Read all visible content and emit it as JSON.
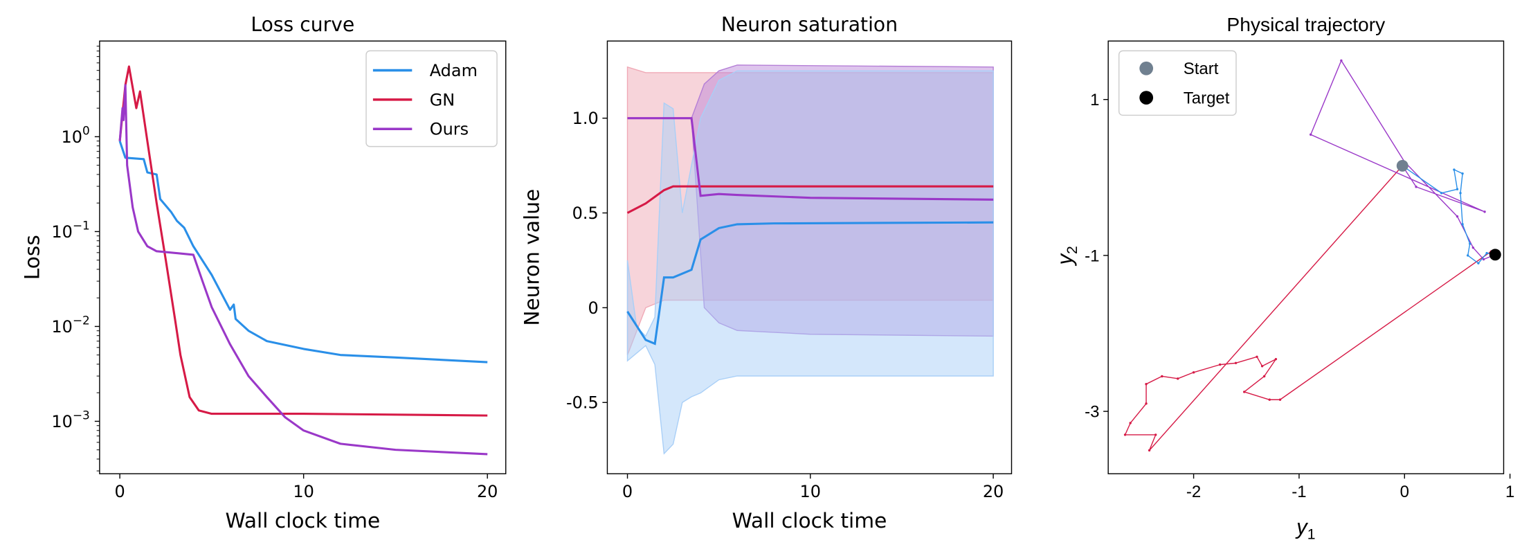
{
  "colors": {
    "Adam": "#2a8fe8",
    "GN": "#d61a46",
    "Ours": "#9a38c8",
    "start": "#708090",
    "target": "#000000"
  },
  "chart_data": [
    {
      "type": "line",
      "title": "Loss curve",
      "xlabel": "Wall clock time",
      "ylabel": "Loss",
      "yscale": "log",
      "xlim": [
        -1.1,
        21
      ],
      "ylim": [
        0.00028,
        10.2
      ],
      "xticks": [
        0,
        10,
        20
      ],
      "yticks": [
        1,
        0.1,
        0.01,
        0.001
      ],
      "ytick_labels": [
        [
          "10",
          "0"
        ],
        [
          "10",
          "−1"
        ],
        [
          "10",
          "−2"
        ],
        [
          "10",
          "−3"
        ]
      ],
      "legend": "top-right",
      "series": [
        {
          "name": "Adam",
          "points": [
            [
              0,
              0.9
            ],
            [
              0.3,
              0.6
            ],
            [
              1.3,
              0.58
            ],
            [
              1.5,
              0.42
            ],
            [
              2,
              0.4
            ],
            [
              2.2,
              0.22
            ],
            [
              2.8,
              0.16
            ],
            [
              3.1,
              0.13
            ],
            [
              3.5,
              0.11
            ],
            [
              4,
              0.07
            ],
            [
              5,
              0.035
            ],
            [
              6,
              0.015
            ],
            [
              6.2,
              0.017
            ],
            [
              6.3,
              0.012
            ],
            [
              7,
              0.009
            ],
            [
              8,
              0.007
            ],
            [
              10,
              0.0058
            ],
            [
              12,
              0.005
            ],
            [
              15,
              0.0047
            ],
            [
              20,
              0.0042
            ]
          ]
        },
        {
          "name": "GN",
          "points": [
            [
              0,
              0.9
            ],
            [
              0.3,
              3.5
            ],
            [
              0.5,
              5.5
            ],
            [
              0.9,
              2
            ],
            [
              1.1,
              3
            ],
            [
              1.5,
              0.9
            ],
            [
              2,
              0.2
            ],
            [
              2.5,
              0.05
            ],
            [
              3,
              0.012
            ],
            [
              3.3,
              0.005
            ],
            [
              3.8,
              0.0018
            ],
            [
              4.3,
              0.0013
            ],
            [
              5,
              0.0012
            ],
            [
              10,
              0.0012
            ],
            [
              20,
              0.00115
            ]
          ]
        },
        {
          "name": "Ours",
          "points": [
            [
              0,
              0.9
            ],
            [
              0.15,
              2
            ],
            [
              0.2,
              1.5
            ],
            [
              0.3,
              3.5
            ],
            [
              0.4,
              0.5
            ],
            [
              0.7,
              0.18
            ],
            [
              1,
              0.1
            ],
            [
              1.5,
              0.07
            ],
            [
              2,
              0.062
            ],
            [
              4,
              0.057
            ],
            [
              4.5,
              0.03
            ],
            [
              5,
              0.016
            ],
            [
              6,
              0.0065
            ],
            [
              7,
              0.003
            ],
            [
              8,
              0.0018
            ],
            [
              9,
              0.0011
            ],
            [
              10,
              0.0008
            ],
            [
              12,
              0.00058
            ],
            [
              15,
              0.0005
            ],
            [
              20,
              0.00045
            ]
          ]
        }
      ]
    },
    {
      "type": "area",
      "title": "Neuron saturation",
      "xlabel": "Wall clock time",
      "ylabel": "Neuron value",
      "xlim": [
        -1.1,
        21
      ],
      "ylim": [
        -0.876,
        1.407
      ],
      "xticks": [
        0,
        10,
        20
      ],
      "yticks": [
        1.0,
        0.5,
        0,
        -0.5
      ],
      "ytick_labels": [
        "1.0",
        "0.5",
        "0",
        "-0.5"
      ],
      "series": [
        {
          "name": "GN",
          "mean": [
            [
              0,
              0.5
            ],
            [
              1,
              0.55
            ],
            [
              2,
              0.62
            ],
            [
              2.5,
              0.64
            ],
            [
              20,
              0.64
            ]
          ],
          "upper": [
            [
              0,
              1.27
            ],
            [
              1,
              1.24
            ],
            [
              20,
              1.24
            ]
          ],
          "lower": [
            [
              0,
              -0.25
            ],
            [
              1,
              0.0
            ],
            [
              2,
              0.04
            ],
            [
              2.5,
              0.04
            ],
            [
              20,
              0.04
            ]
          ]
        },
        {
          "name": "Ours",
          "mean": [
            [
              0,
              1.0
            ],
            [
              3.5,
              1.0
            ],
            [
              4,
              0.59
            ],
            [
              5,
              0.6
            ],
            [
              6,
              0.595
            ],
            [
              10,
              0.58
            ],
            [
              20,
              0.57
            ]
          ],
          "upper": [
            [
              0,
              1.0
            ],
            [
              3.5,
              1.0
            ],
            [
              4.2,
              1.18
            ],
            [
              5,
              1.25
            ],
            [
              6,
              1.28
            ],
            [
              20,
              1.27
            ]
          ],
          "lower": [
            [
              0,
              1.0
            ],
            [
              3.5,
              1.0
            ],
            [
              4.2,
              0.0
            ],
            [
              5,
              -0.08
            ],
            [
              6,
              -0.12
            ],
            [
              10,
              -0.14
            ],
            [
              20,
              -0.15
            ]
          ]
        },
        {
          "name": "Adam",
          "mean": [
            [
              0,
              -0.02
            ],
            [
              1,
              -0.17
            ],
            [
              1.5,
              -0.19
            ],
            [
              2,
              0.16
            ],
            [
              2.5,
              0.16
            ],
            [
              3,
              0.18
            ],
            [
              3.5,
              0.2
            ],
            [
              4,
              0.36
            ],
            [
              5,
              0.42
            ],
            [
              6,
              0.44
            ],
            [
              8,
              0.445
            ],
            [
              20,
              0.45
            ]
          ],
          "upper": [
            [
              0,
              0.25
            ],
            [
              0.5,
              -0.1
            ],
            [
              1,
              -0.15
            ],
            [
              1.5,
              -0.05
            ],
            [
              2,
              1.08
            ],
            [
              2.5,
              1.05
            ],
            [
              3,
              0.5
            ],
            [
              4,
              1.0
            ],
            [
              5,
              1.2
            ],
            [
              6,
              1.25
            ],
            [
              20,
              1.25
            ]
          ],
          "lower": [
            [
              0,
              -0.28
            ],
            [
              1,
              -0.2
            ],
            [
              1.5,
              -0.3
            ],
            [
              2,
              -0.77
            ],
            [
              2.5,
              -0.72
            ],
            [
              3,
              -0.5
            ],
            [
              3.5,
              -0.47
            ],
            [
              4,
              -0.45
            ],
            [
              5,
              -0.38
            ],
            [
              6,
              -0.36
            ],
            [
              20,
              -0.36
            ]
          ]
        }
      ]
    },
    {
      "type": "line",
      "title": "Physical trajectory",
      "xlabel": "y1",
      "ylabel": "y2",
      "xlim": [
        -2.81,
        0.94
      ],
      "ylim": [
        -3.8,
        1.75
      ],
      "xticks": [
        -2,
        -1,
        0,
        1
      ],
      "yticks": [
        1,
        -1,
        -3
      ],
      "legend": "top-left",
      "markers": [
        {
          "name": "Start",
          "point": [
            -0.02,
            0.15
          ]
        },
        {
          "name": "Target",
          "point": [
            0.86,
            -0.99
          ]
        }
      ],
      "series": [
        {
          "name": "GN",
          "points": [
            [
              -0.02,
              0.15
            ],
            [
              -2.42,
              -3.5
            ],
            [
              -2.36,
              -3.3
            ],
            [
              -2.65,
              -3.3
            ],
            [
              -2.6,
              -3.15
            ],
            [
              -2.45,
              -2.9
            ],
            [
              -2.45,
              -2.65
            ],
            [
              -2.3,
              -2.55
            ],
            [
              -2.15,
              -2.58
            ],
            [
              -2,
              -2.5
            ],
            [
              -1.75,
              -2.4
            ],
            [
              -1.6,
              -2.38
            ],
            [
              -1.4,
              -2.3
            ],
            [
              -1.35,
              -2.42
            ],
            [
              -1.22,
              -2.33
            ],
            [
              -1.33,
              -2.55
            ],
            [
              -1.52,
              -2.75
            ],
            [
              -1.28,
              -2.85
            ],
            [
              -1.18,
              -2.85
            ],
            [
              0.82,
              -0.95
            ],
            [
              0.86,
              -0.99
            ]
          ]
        },
        {
          "name": "Ours",
          "points": [
            [
              -0.02,
              0.15
            ],
            [
              0.11,
              -0.12
            ],
            [
              0.76,
              -0.44
            ],
            [
              -0.89,
              0.55
            ],
            [
              -0.6,
              1.5
            ],
            [
              0.0,
              0.2
            ],
            [
              0.5,
              -0.5
            ],
            [
              0.65,
              -0.9
            ],
            [
              0.75,
              -1.05
            ],
            [
              0.86,
              -0.99
            ]
          ]
        },
        {
          "name": "Adam",
          "points": [
            [
              -0.02,
              0.15
            ],
            [
              0.35,
              -0.2
            ],
            [
              0.5,
              -0.15
            ],
            [
              0.47,
              0.1
            ],
            [
              0.55,
              0.05
            ],
            [
              0.53,
              -0.2
            ],
            [
              0.55,
              -0.6
            ],
            [
              0.62,
              -0.85
            ],
            [
              0.6,
              -1.0
            ],
            [
              0.7,
              -1.1
            ],
            [
              0.78,
              -0.97
            ],
            [
              0.86,
              -0.99
            ]
          ]
        }
      ]
    }
  ]
}
